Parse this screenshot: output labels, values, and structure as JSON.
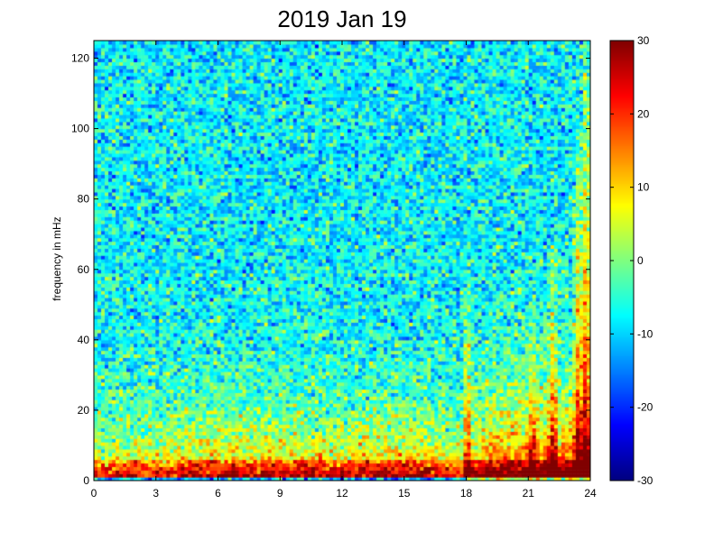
{
  "chart_data": {
    "type": "heatmap",
    "title": "2019 Jan 19",
    "xlabel": "",
    "ylabel": "frequency in mHz",
    "xlim": [
      0,
      24
    ],
    "ylim": [
      0,
      125
    ],
    "xticks": [
      "0",
      "3",
      "6",
      "9",
      "12",
      "15",
      "18",
      "21",
      "24"
    ],
    "yticks": [
      "0",
      "20",
      "40",
      "60",
      "80",
      "100",
      "120"
    ],
    "colorbar": {
      "range": [
        -30,
        30
      ],
      "ticks": [
        "-30",
        "-20",
        "-10",
        "0",
        "10",
        "20",
        "30"
      ],
      "colormap": "jet"
    },
    "grid": false,
    "description_of_values": "dB power; low frequencies (<5 mHz) near 30, rising broadband enhancement after hour 18, strong vertical streaks near hours 18, 21, 22.5, 23.5"
  }
}
